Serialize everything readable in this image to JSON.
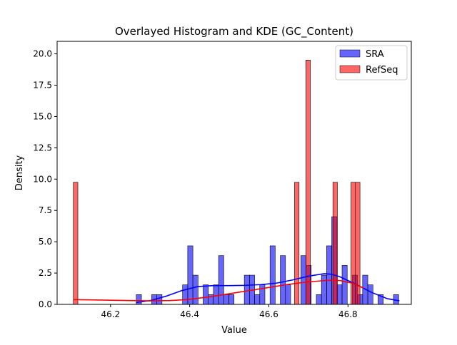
{
  "chart_data": {
    "type": "bar",
    "title": "Overlayed Histogram and KDE (GC_Content)",
    "xlabel": "Value",
    "ylabel": "Density",
    "xlim": [
      46.065,
      46.96
    ],
    "ylim": [
      0,
      21
    ],
    "xticks": [
      46.2,
      46.4,
      46.6,
      46.8
    ],
    "xtick_labels": [
      "46.2",
      "46.4",
      "46.6",
      "46.8"
    ],
    "yticks": [
      0,
      2.5,
      5,
      7.5,
      10,
      12.5,
      15,
      17.5,
      20
    ],
    "ytick_labels": [
      "0.0",
      "2.5",
      "5.0",
      "7.5",
      "10.0",
      "12.5",
      "15.0",
      "17.5",
      "20.0"
    ],
    "legend_position": "top-right",
    "grid": false,
    "series": [
      {
        "name": "SRA",
        "kind": "histogram",
        "color": "#0000ff",
        "bin_width": 0.01305,
        "bars": [
          {
            "x0": 46.265,
            "height": 0.78
          },
          {
            "x0": 46.304,
            "height": 0.78
          },
          {
            "x0": 46.317,
            "height": 0.78
          },
          {
            "x0": 46.382,
            "height": 1.56
          },
          {
            "x0": 46.395,
            "height": 4.67
          },
          {
            "x0": 46.408,
            "height": 2.33
          },
          {
            "x0": 46.434,
            "height": 1.56
          },
          {
            "x0": 46.447,
            "height": 0.78
          },
          {
            "x0": 46.46,
            "height": 1.56
          },
          {
            "x0": 46.473,
            "height": 3.89
          },
          {
            "x0": 46.486,
            "height": 0.78
          },
          {
            "x0": 46.499,
            "height": 0.78
          },
          {
            "x0": 46.538,
            "height": 2.33
          },
          {
            "x0": 46.551,
            "height": 2.33
          },
          {
            "x0": 46.564,
            "height": 0.78
          },
          {
            "x0": 46.577,
            "height": 1.56
          },
          {
            "x0": 46.603,
            "height": 4.67
          },
          {
            "x0": 46.629,
            "height": 3.89
          },
          {
            "x0": 46.642,
            "height": 1.56
          },
          {
            "x0": 46.681,
            "height": 3.89
          },
          {
            "x0": 46.694,
            "height": 3.11
          },
          {
            "x0": 46.72,
            "height": 0.78
          },
          {
            "x0": 46.733,
            "height": 2.33
          },
          {
            "x0": 46.746,
            "height": 4.67
          },
          {
            "x0": 46.759,
            "height": 7.0
          },
          {
            "x0": 46.772,
            "height": 1.56
          },
          {
            "x0": 46.785,
            "height": 3.11
          },
          {
            "x0": 46.811,
            "height": 2.33
          },
          {
            "x0": 46.824,
            "height": 0.78
          },
          {
            "x0": 46.837,
            "height": 2.33
          },
          {
            "x0": 46.85,
            "height": 1.56
          },
          {
            "x0": 46.876,
            "height": 0.78
          },
          {
            "x0": 46.915,
            "height": 0.78
          }
        ],
        "kde": {
          "x": [
            46.265,
            46.3,
            46.34,
            46.38,
            46.42,
            46.46,
            46.5,
            46.54,
            46.58,
            46.62,
            46.66,
            46.7,
            46.74,
            46.76,
            46.78,
            46.82,
            46.86,
            46.9,
            46.93
          ],
          "y": [
            0.15,
            0.3,
            0.65,
            1.1,
            1.42,
            1.5,
            1.5,
            1.52,
            1.58,
            1.7,
            1.95,
            2.25,
            2.45,
            2.4,
            2.2,
            1.6,
            0.95,
            0.45,
            0.28
          ]
        }
      },
      {
        "name": "RefSeq",
        "kind": "histogram",
        "color": "#ff0000",
        "bin_width": 0.0114,
        "bars": [
          {
            "x0": 46.106,
            "height": 9.75
          },
          {
            "x0": 46.665,
            "height": 9.75
          },
          {
            "x0": 46.6935,
            "height": 19.5
          },
          {
            "x0": 46.7619,
            "height": 9.75
          },
          {
            "x0": 46.8075,
            "height": 9.75
          },
          {
            "x0": 46.8189,
            "height": 9.75
          }
        ],
        "kde": {
          "x": [
            46.106,
            46.15,
            46.2,
            46.25,
            46.3,
            46.35,
            46.4,
            46.45,
            46.5,
            46.55,
            46.6,
            46.65,
            46.7,
            46.75,
            46.78,
            46.81,
            46.84
          ],
          "y": [
            0.38,
            0.36,
            0.33,
            0.3,
            0.28,
            0.3,
            0.4,
            0.6,
            0.85,
            1.1,
            1.35,
            1.6,
            1.8,
            1.92,
            1.9,
            1.7,
            1.3
          ]
        }
      }
    ]
  }
}
